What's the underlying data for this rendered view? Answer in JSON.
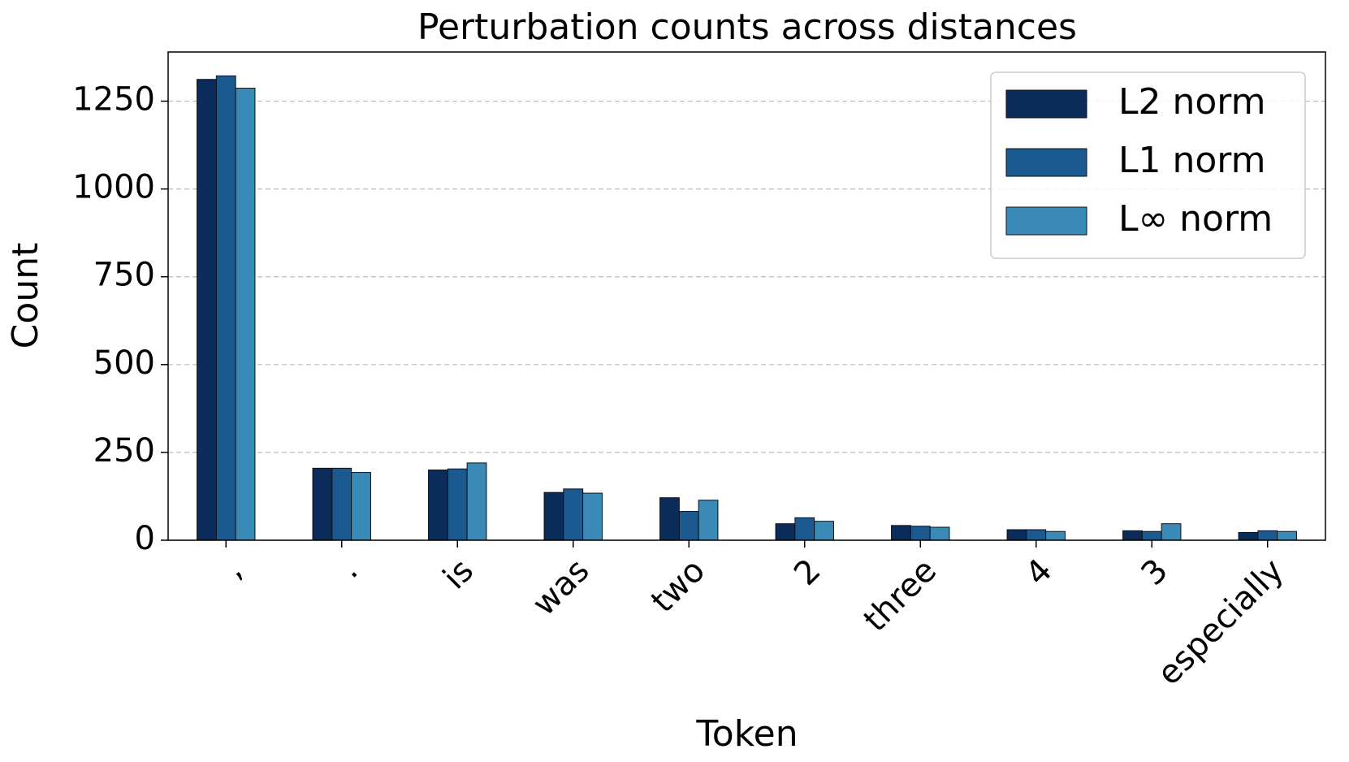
{
  "chart_data": {
    "type": "bar",
    "title": "Perturbation counts across distances",
    "x_label": "Token",
    "y_label": "Count",
    "categories": [
      ",",
      ".",
      "is",
      "was",
      "two",
      "2",
      "three",
      "4",
      "3",
      "especially"
    ],
    "series": [
      {
        "name": "L2 norm",
        "color": "#0b2c5a",
        "values": [
          1312,
          205,
          200,
          136,
          121,
          47,
          42,
          30,
          27,
          22
        ]
      },
      {
        "name": "L1 norm",
        "color": "#1b5a90",
        "values": [
          1322,
          205,
          203,
          146,
          82,
          64,
          40,
          30,
          25,
          27
        ]
      },
      {
        "name": "L∞ norm",
        "color": "#3a8ab8",
        "values": [
          1287,
          193,
          220,
          134,
          114,
          54,
          37,
          25,
          47,
          25
        ]
      }
    ],
    "ylim": [
      0,
      1390
    ],
    "yticks": [
      0,
      250,
      500,
      750,
      1000,
      1250
    ],
    "grid": true,
    "legend": "upper right"
  }
}
